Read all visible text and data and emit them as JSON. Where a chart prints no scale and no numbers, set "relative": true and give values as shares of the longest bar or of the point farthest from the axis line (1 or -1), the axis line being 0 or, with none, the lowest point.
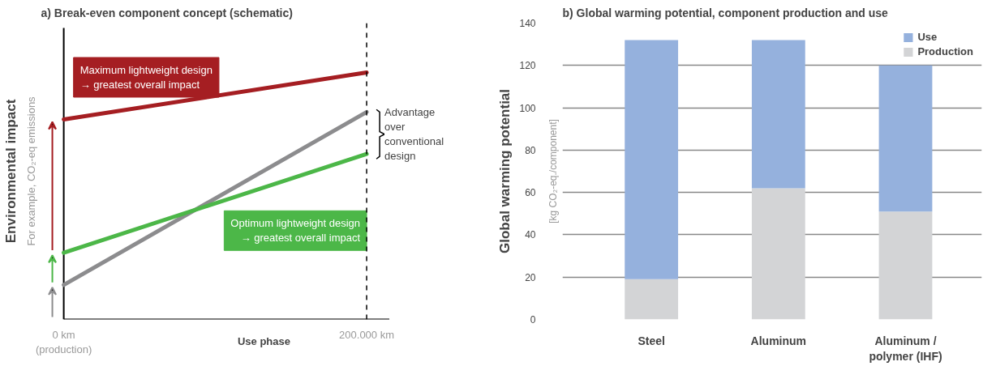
{
  "chart_data": [
    {
      "type": "line",
      "title": "a) Break-even component concept (schematic)",
      "xlabel": "Use phase",
      "ylabel": "Environmental impact",
      "relative": true,
      "x": [
        0,
        200000
      ],
      "xlim": [
        0,
        215000
      ],
      "xticks": [
        {
          "value": 0,
          "label": "0 km\n(production)"
        },
        {
          "value": 200000,
          "label": "200.000 km"
        }
      ],
      "series": [
        {
          "name": "Maximum lightweight design\n→ greatest overall impact",
          "color": "#a51e22",
          "values": [
            0.81,
            1.0
          ]
        },
        {
          "color": "#8c8c8e",
          "values": [
            0.14,
            0.84
          ]
        },
        {
          "name": "Optimum lightweight design\n→ greatest overall impact",
          "color": "#4cb748",
          "values": [
            0.27,
            0.67
          ]
        }
      ],
      "ref_lines": [
        {
          "axis": "x",
          "value": 200000,
          "color": "#000000",
          "line_style": "dashed"
        }
      ],
      "annotations": [
        "For example, CO₂-eq emissions",
        {
          "text": "Advantage\nover\nconventional\ndesign",
          "x": 200000,
          "y": 0.75
        }
      ],
      "grid": false,
      "legend": false,
      "marker": "none",
      "line_style": "solid"
    },
    {
      "type": "bar",
      "stacked": true,
      "title": "b) Global warming potential, component production and use",
      "ylabel": "Global warming potential",
      "categories": [
        "Steel",
        "Aluminum",
        "Aluminum /\npolymer (IHF)"
      ],
      "series": [
        {
          "name": "Production",
          "color": "#d3d4d6",
          "values": [
            19,
            62,
            51
          ]
        },
        {
          "name": "Use",
          "color": "#95b1dd",
          "values": [
            113,
            70,
            69
          ]
        }
      ],
      "ylim": [
        0,
        140
      ],
      "yticks": [
        0,
        20,
        40,
        60,
        80,
        100,
        120,
        140
      ],
      "annotations": [
        "[kg CO₂-eq./component]"
      ],
      "grid": "y",
      "legend": "top right"
    }
  ]
}
